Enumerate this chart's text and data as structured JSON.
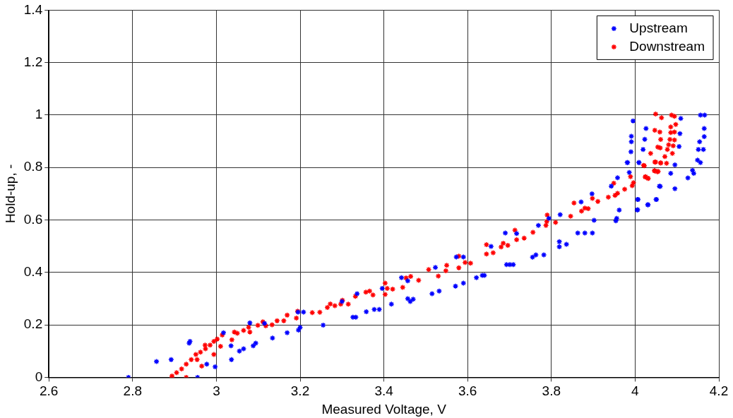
{
  "chart_data": {
    "type": "scatter",
    "xlabel": "Measured Voltage, V",
    "ylabel": "Hold-up, -",
    "xlim": [
      2.6,
      4.2
    ],
    "ylim": [
      0,
      1.4
    ],
    "xticks": [
      2.6,
      2.8,
      3,
      3.2,
      3.4,
      3.6,
      3.8,
      4,
      4.2
    ],
    "yticks": [
      0,
      0.2,
      0.4,
      0.6,
      0.8,
      1,
      1.2,
      1.4
    ],
    "grid": true,
    "legend": "top right",
    "marker": "cross",
    "series": [
      {
        "name": "Upstream",
        "color": "#0000ff",
        "x": [
          2.79,
          2.857,
          2.892,
          2.937,
          2.935,
          2.955,
          2.977,
          2.997,
          3.017,
          3.035,
          3.036,
          3.055,
          3.065,
          3.088,
          3.094,
          3.08,
          3.115,
          3.134,
          3.169,
          3.196,
          3.2,
          3.195,
          3.208,
          3.255,
          3.326,
          3.333,
          3.336,
          3.3,
          3.358,
          3.377,
          3.389,
          3.396,
          3.418,
          3.442,
          3.457,
          3.457,
          3.463,
          3.47,
          3.515,
          3.532,
          3.523,
          3.571,
          3.573,
          3.59,
          3.59,
          3.621,
          3.635,
          3.64,
          3.656,
          3.69,
          3.693,
          3.701,
          3.709,
          3.717,
          3.755,
          3.763,
          3.782,
          3.769,
          3.794,
          3.821,
          3.819,
          3.819,
          3.836,
          3.863,
          3.88,
          3.898,
          3.871,
          3.897,
          3.902,
          3.954,
          3.956,
          3.962,
          3.943,
          3.958,
          3.986,
          3.982,
          4.005,
          4.006,
          4.009,
          4.03,
          4.05,
          4.058,
          3.995,
          4.026,
          3.991,
          3.991,
          4.023,
          4.019,
          3.99,
          3.981,
          4.009,
          4.109,
          4.107,
          4.105,
          4.095,
          4.156,
          4.166,
          4.165,
          4.165,
          4.154,
          4.151,
          4.163,
          4.149,
          4.156,
          4.137,
          4.14,
          4.126,
          4.085,
          4.06,
          4.095,
          4.007,
          4.051,
          4.031,
          4.006
        ],
        "values": [
          0,
          0.06,
          0.068,
          0.137,
          0.13,
          0,
          0.05,
          0.04,
          0.17,
          0.12,
          0.068,
          0.1,
          0.109,
          0.12,
          0.13,
          0.208,
          0.206,
          0.15,
          0.17,
          0.18,
          0.19,
          0.249,
          0.249,
          0.199,
          0.229,
          0.229,
          0.319,
          0.289,
          0.25,
          0.259,
          0.259,
          0.339,
          0.279,
          0.38,
          0.368,
          0.3,
          0.289,
          0.298,
          0.319,
          0.329,
          0.419,
          0.348,
          0.459,
          0.459,
          0.359,
          0.38,
          0.389,
          0.389,
          0.499,
          0.55,
          0.43,
          0.43,
          0.43,
          0.548,
          0.458,
          0.467,
          0.467,
          0.579,
          0.606,
          0.62,
          0.517,
          0.498,
          0.507,
          0.55,
          0.55,
          0.55,
          0.669,
          0.7,
          0.599,
          0.597,
          0.606,
          0.638,
          0.729,
          0.761,
          0.781,
          0.819,
          0.638,
          0.678,
          0.819,
          0.658,
          0.678,
          0.729,
          0.978,
          0.949,
          0.919,
          0.898,
          0.908,
          0.869,
          0.86,
          0.819,
          0.819,
          0.987,
          0.929,
          0.88,
          0.81,
          1,
          1,
          0.949,
          0.918,
          0.898,
          0.869,
          0.869,
          0.828,
          0.819,
          0.789,
          0.778,
          0.76,
          0.778,
          0.728,
          0.719,
          0.678,
          0.678,
          0.658,
          0.639
        ]
      },
      {
        "name": "Downstream",
        "color": "#ff0000",
        "x": [
          2.894,
          2.928,
          2.894,
          2.905,
          2.917,
          2.928,
          2.94,
          2.951,
          2.962,
          2.974,
          2.985,
          2.994,
          3.002,
          3.014,
          2.965,
          2.954,
          2.973,
          2.994,
          3.01,
          3.037,
          3.043,
          3.05,
          3.065,
          3.077,
          3.08,
          3.099,
          3.111,
          3.118,
          3.133,
          3.145,
          3.161,
          3.169,
          3.191,
          3.194,
          3.229,
          3.247,
          3.265,
          3.272,
          3.283,
          3.297,
          3.301,
          3.315,
          3.332,
          3.357,
          3.366,
          3.374,
          3.403,
          3.403,
          3.408,
          3.421,
          3.445,
          3.453,
          3.464,
          3.483,
          3.507,
          3.53,
          3.548,
          3.55,
          3.579,
          3.579,
          3.594,
          3.607,
          3.645,
          3.645,
          3.661,
          3.68,
          3.685,
          3.696,
          3.713,
          3.717,
          3.735,
          3.756,
          3.787,
          3.789,
          3.79,
          3.81,
          3.846,
          3.872,
          3.88,
          3.888,
          3.854,
          3.911,
          3.898,
          3.936,
          3.952,
          3.958,
          3.975,
          3.993,
          3.996,
          3.949,
          3.989,
          4.02,
          4.024,
          4.031,
          4.047,
          4.061,
          4.046,
          4.053,
          4.049,
          4.063,
          4.087,
          4.094,
          4.097,
          4.085,
          4.047,
          4.059,
          4.085,
          4.094,
          4.061,
          4.083,
          4.094,
          4.054,
          4.06,
          4.08,
          4.091,
          4.077,
          4.037,
          4.089,
          4.071,
          4.049,
          4.061,
          4.075,
          4.022,
          4.047,
          4.055,
          4.025,
          4.031
        ],
        "values": [
          0,
          0,
          0.005,
          0.018,
          0.032,
          0.05,
          0.068,
          0.087,
          0.096,
          0.109,
          0.123,
          0.137,
          0.146,
          0.161,
          0.043,
          0.068,
          0.123,
          0.087,
          0.118,
          0.143,
          0.173,
          0.168,
          0.179,
          0.191,
          0.173,
          0.198,
          0.212,
          0.196,
          0.2,
          0.216,
          0.216,
          0.237,
          0.226,
          0.252,
          0.247,
          0.248,
          0.266,
          0.28,
          0.273,
          0.279,
          0.294,
          0.279,
          0.309,
          0.325,
          0.329,
          0.314,
          0.359,
          0.316,
          0.339,
          0.336,
          0.343,
          0.379,
          0.385,
          0.37,
          0.411,
          0.386,
          0.406,
          0.427,
          0.418,
          0.462,
          0.438,
          0.435,
          0.47,
          0.506,
          0.475,
          0.497,
          0.511,
          0.503,
          0.561,
          0.525,
          0.531,
          0.553,
          0.579,
          0.594,
          0.619,
          0.591,
          0.614,
          0.634,
          0.645,
          0.643,
          0.665,
          0.671,
          0.682,
          0.687,
          0.694,
          0.702,
          0.717,
          0.731,
          0.742,
          0.74,
          0.765,
          0.808,
          0.764,
          0.759,
          0.821,
          0.817,
          0.788,
          0.784,
          1.004,
          0.99,
          1,
          0.995,
          0.964,
          0.955,
          0.942,
          0.935,
          0.933,
          0.935,
          0.907,
          0.907,
          0.905,
          0.878,
          0.875,
          0.887,
          0.883,
          0.869,
          0.854,
          0.854,
          0.842,
          0.821,
          0.818,
          0.816,
          0.807,
          0.787,
          0.785,
          0.765,
          0.758
        ]
      }
    ]
  }
}
